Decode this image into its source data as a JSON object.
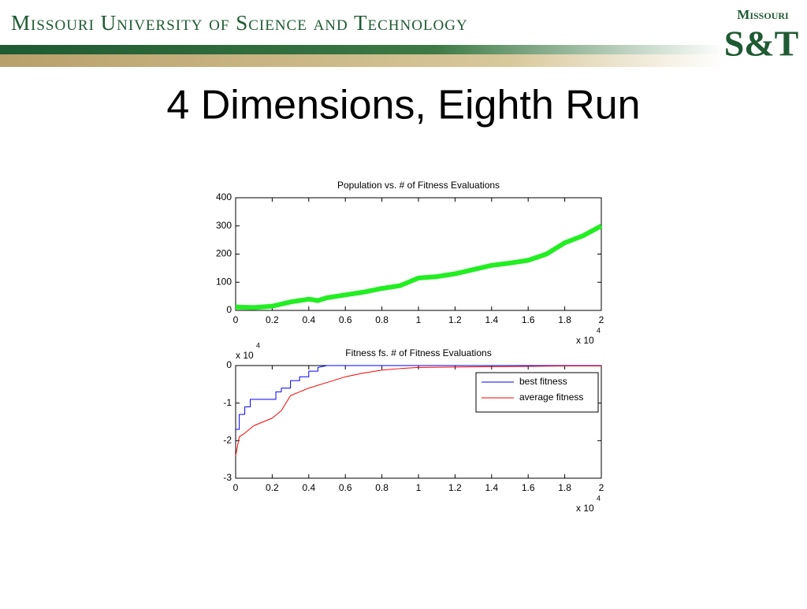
{
  "header": {
    "university": "Missouri University of Science and Technology",
    "logo_top": "Missouri",
    "logo_bottom": "S&T"
  },
  "slide_title": "4 Dimensions, Eighth Run",
  "chart_data": [
    {
      "type": "line",
      "title": "Population vs. # of Fitness Evaluations",
      "x": [
        0,
        0.1,
        0.2,
        0.3,
        0.4,
        0.45,
        0.5,
        0.6,
        0.7,
        0.8,
        0.9,
        1.0,
        1.1,
        1.2,
        1.3,
        1.4,
        1.5,
        1.6,
        1.7,
        1.8,
        1.9,
        2.0
      ],
      "series": [
        {
          "color": "#22ee22",
          "values": [
            12,
            10,
            15,
            30,
            40,
            35,
            45,
            55,
            65,
            78,
            88,
            115,
            120,
            130,
            145,
            160,
            168,
            178,
            200,
            240,
            265,
            300
          ]
        }
      ],
      "xlim": [
        0,
        2
      ],
      "ylim": [
        0,
        400
      ],
      "xticks": [
        0,
        0.2,
        0.4,
        0.6,
        0.8,
        1,
        1.2,
        1.4,
        1.6,
        1.8,
        2
      ],
      "yticks": [
        0,
        100,
        200,
        300,
        400
      ],
      "x_multiplier": "x 10",
      "x_exponent": "4"
    },
    {
      "type": "line",
      "title": "Fitness fs. # of Fitness Evaluations",
      "series": [
        {
          "name": "best fitness",
          "color": "#0000ff",
          "x": [
            0,
            0.02,
            0.02,
            0.05,
            0.05,
            0.08,
            0.08,
            0.22,
            0.22,
            0.25,
            0.25,
            0.3,
            0.3,
            0.35,
            0.35,
            0.4,
            0.4,
            0.45,
            0.45,
            0.5,
            2.0
          ],
          "values": [
            -1.7,
            -1.7,
            -1.3,
            -1.3,
            -1.1,
            -1.1,
            -0.9,
            -0.9,
            -0.7,
            -0.7,
            -0.6,
            -0.6,
            -0.4,
            -0.4,
            -0.3,
            -0.3,
            -0.15,
            -0.15,
            -0.05,
            0,
            0
          ]
        },
        {
          "name": "average fitness",
          "color": "#ff0000",
          "x": [
            0,
            0.02,
            0.05,
            0.1,
            0.15,
            0.2,
            0.25,
            0.3,
            0.4,
            0.5,
            0.6,
            0.7,
            0.8,
            0.9,
            1.0,
            1.2,
            1.4,
            1.6,
            1.8,
            2.0
          ],
          "values": [
            -2.4,
            -1.9,
            -1.8,
            -1.6,
            -1.5,
            -1.4,
            -1.2,
            -0.8,
            -0.6,
            -0.45,
            -0.3,
            -0.2,
            -0.12,
            -0.08,
            -0.05,
            -0.04,
            -0.03,
            -0.02,
            -0.01,
            -0.01
          ]
        }
      ],
      "xlim": [
        0,
        2
      ],
      "ylim": [
        -3,
        0
      ],
      "xticks": [
        0,
        0.2,
        0.4,
        0.6,
        0.8,
        1,
        1.2,
        1.4,
        1.6,
        1.8,
        2
      ],
      "yticks": [
        -3,
        -2,
        -1,
        0
      ],
      "x_multiplier": "x 10",
      "x_exponent": "4",
      "y_multiplier": "x 10",
      "y_exponent": "4",
      "legend": "upper right"
    }
  ]
}
